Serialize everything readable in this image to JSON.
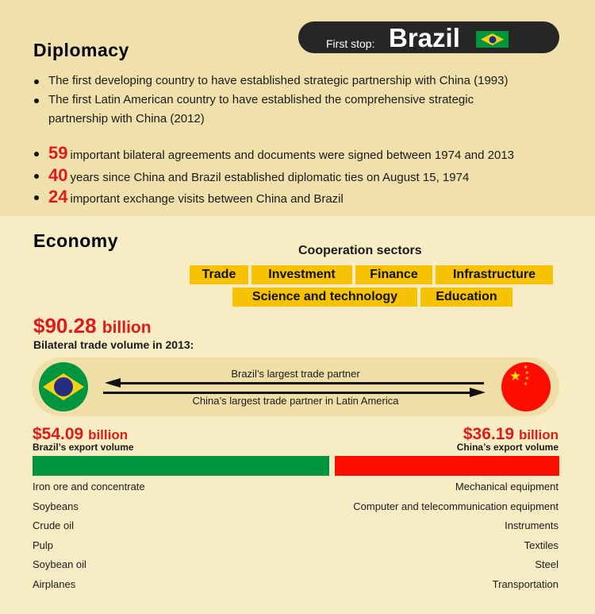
{
  "header": {
    "first_stop_label": "First stop:",
    "country": "Brazil",
    "flag_icon": "brazil-flag"
  },
  "diplomacy": {
    "title": "Diplomacy",
    "firsts": [
      "The first developing country to have established strategic partnership with China (1993)",
      "The first Latin American country to have established the comprehensive strategic partnership with China (2012)"
    ],
    "stats": [
      {
        "number": "59",
        "text": "important bilateral agreements and documents were signed between 1974 and 2013"
      },
      {
        "number": "40",
        "text": "years since China and Brazil established diplomatic ties on August 15, 1974"
      },
      {
        "number": "24",
        "text": "important exchange visits between China and Brazil"
      }
    ]
  },
  "economy": {
    "title": "Economy",
    "sectors_title": "Cooperation sectors",
    "sectors": [
      "Trade",
      "Investment",
      "Finance",
      "Infrastructure",
      "Science and technology",
      "Education"
    ],
    "trade_volume": {
      "amount": "$90.28",
      "unit": "billion",
      "label": "Bilateral trade volume in 2013:"
    },
    "relation": {
      "top": "Brazil’s largest trade partner",
      "bottom": "China’s largest trade partner in Latin America"
    },
    "brazil_export": {
      "amount": "$54.09",
      "unit": "billion",
      "label": "Brazil’s export volume",
      "value_billion": 54.09,
      "color": "#00953f",
      "items": [
        "Iron ore and concentrate",
        "Soybeans",
        "Crude oil",
        "Pulp",
        "Soybean oil",
        "Airplanes"
      ]
    },
    "china_export": {
      "amount": "$36.19",
      "unit": "billion",
      "label": "China’s export volume",
      "value_billion": 36.19,
      "color": "#ff0c00",
      "items": [
        "Mechanical equipment",
        "Computer and telecommunication equipment",
        "Instruments",
        "Textiles",
        "Steel",
        "Transportation"
      ]
    }
  }
}
